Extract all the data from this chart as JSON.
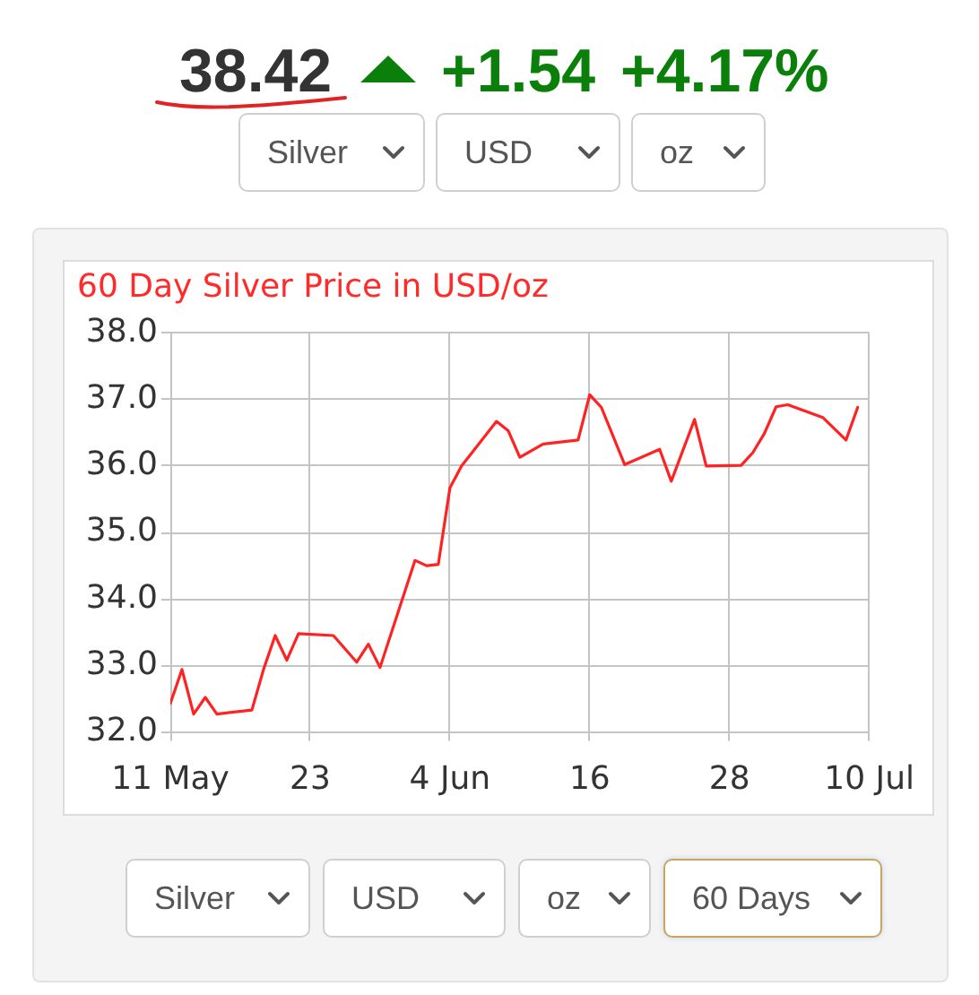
{
  "chart_data": {
    "type": "line",
    "title": "60 Day Silver Price in USD/oz",
    "x": [
      "--05-11",
      "--05-12",
      "--05-13",
      "--05-14",
      "--05-15",
      "--05-18",
      "--05-19",
      "--05-20",
      "--05-21",
      "--05-22",
      "--05-25",
      "--05-27",
      "--05-28",
      "--05-29",
      "--06-01",
      "--06-02",
      "--06-03",
      "--06-04",
      "--06-05",
      "--06-08",
      "--06-09",
      "--06-10",
      "--06-12",
      "--06-15",
      "--06-16",
      "--06-17",
      "--06-19",
      "--06-22",
      "--06-23",
      "--06-25",
      "--06-26",
      "--06-29",
      "--06-30",
      "--07-01",
      "--07-02",
      "--07-03",
      "--07-06",
      "--07-08",
      "--07-09"
    ],
    "values": [
      32.43,
      32.94,
      32.27,
      32.52,
      32.27,
      32.33,
      32.94,
      33.45,
      33.08,
      33.48,
      33.45,
      33.05,
      33.32,
      32.97,
      34.58,
      34.5,
      34.52,
      35.67,
      36.0,
      36.67,
      36.53,
      36.13,
      36.33,
      36.39,
      37.07,
      36.88,
      36.02,
      36.25,
      35.77,
      36.7,
      36.0,
      36.01,
      36.2,
      36.49,
      36.89,
      36.92,
      36.73,
      36.39,
      36.88
    ],
    "color": "#ff2222",
    "xlim": [
      "--05-11",
      "--07-10"
    ],
    "xticks": [
      {
        "value": "--05-11",
        "label": "11 May"
      },
      {
        "value": "--05-23",
        "label": "23"
      },
      {
        "value": "--06-04",
        "label": "4 Jun"
      },
      {
        "value": "--06-16",
        "label": "16"
      },
      {
        "value": "--06-28",
        "label": "28"
      },
      {
        "value": "--07-10",
        "label": "10 Jul"
      }
    ],
    "ylim": [
      32,
      38
    ],
    "yticks": [
      {
        "value": 32,
        "label": "32.0"
      },
      {
        "value": 33,
        "label": "33.0"
      },
      {
        "value": 34,
        "label": "34.0"
      },
      {
        "value": 35,
        "label": "35.0"
      },
      {
        "value": 36,
        "label": "36.0"
      },
      {
        "value": 37,
        "label": "37.0"
      },
      {
        "value": 38,
        "label": "38.0"
      }
    ],
    "grid": true,
    "marker": "none",
    "line_style": "solid",
    "annotations": [
      "38.42",
      "+1.54",
      "+4.17%",
      "Silver",
      "USD",
      "oz",
      "Silver",
      "USD",
      "oz",
      "60 Days"
    ]
  }
}
